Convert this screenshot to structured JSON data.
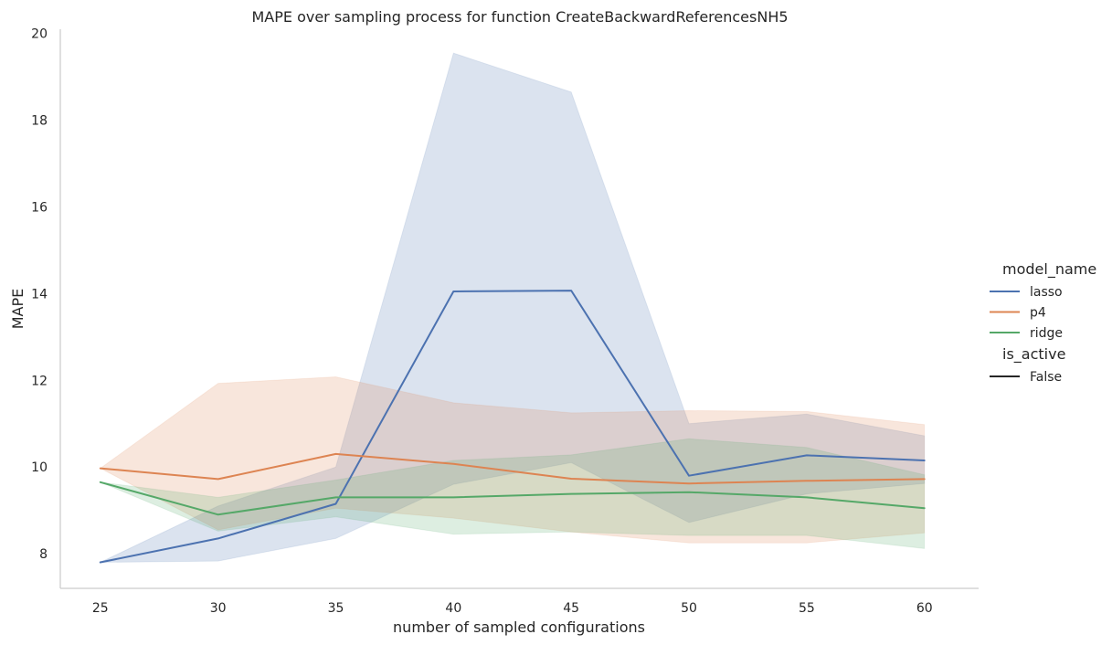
{
  "chart_data": {
    "type": "line",
    "title": "MAPE over sampling process for function CreateBackwardReferencesNH5",
    "xlabel": "number of sampled configurations",
    "ylabel": "MAPE",
    "x": [
      25,
      30,
      35,
      40,
      45,
      50,
      55,
      60
    ],
    "x_ticks": [
      "25",
      "30",
      "35",
      "40",
      "45",
      "50",
      "55",
      "60"
    ],
    "y_ticks": [
      "8",
      "10",
      "12",
      "14",
      "16",
      "18",
      "20"
    ],
    "xlim": [
      23.3,
      62.3
    ],
    "ylim": [
      7.2,
      20.1
    ],
    "grid": false,
    "legend_placement": "right",
    "series": [
      {
        "name": "lasso",
        "color": "#4c72b0",
        "values": [
          7.8,
          8.35,
          9.15,
          14.05,
          14.07,
          9.8,
          10.27,
          10.15
        ],
        "lower": [
          7.8,
          7.83,
          8.35,
          9.6,
          10.1,
          8.72,
          9.38,
          9.62
        ],
        "upper": [
          7.8,
          9.1,
          10.0,
          19.55,
          18.65,
          11.0,
          11.22,
          10.72
        ]
      },
      {
        "name": "p4",
        "color": "#dd8452",
        "values": [
          9.97,
          9.72,
          10.3,
          10.07,
          9.73,
          9.62,
          9.68,
          9.72
        ],
        "lower": [
          9.97,
          8.55,
          9.05,
          8.82,
          8.5,
          8.25,
          8.25,
          8.48
        ],
        "upper": [
          9.97,
          11.93,
          12.08,
          11.48,
          11.25,
          11.3,
          11.28,
          10.98
        ]
      },
      {
        "name": "ridge",
        "color": "#55a868",
        "values": [
          9.65,
          8.9,
          9.3,
          9.3,
          9.38,
          9.42,
          9.3,
          9.05
        ],
        "lower": [
          9.65,
          8.52,
          8.85,
          8.45,
          8.5,
          8.42,
          8.42,
          8.12
        ],
        "upper": [
          9.65,
          9.3,
          9.7,
          10.15,
          10.28,
          10.65,
          10.45,
          9.82
        ]
      }
    ],
    "legend": {
      "hue_title": "model_name",
      "style_title": "is_active",
      "style_entries": [
        {
          "label": "False",
          "color": "#262626"
        }
      ]
    },
    "colors": {
      "axis": "#cccccc",
      "text": "#262626",
      "background": "#ffffff"
    }
  }
}
